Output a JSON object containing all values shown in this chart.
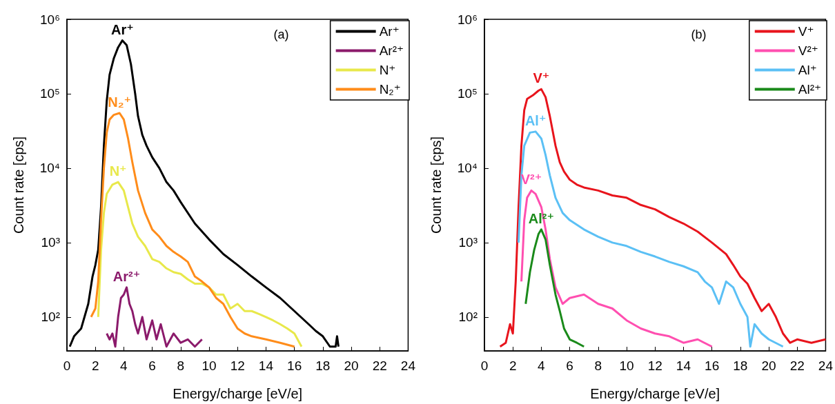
{
  "chart_data": [
    {
      "type": "line",
      "title": "(a)",
      "xlabel": "Energy/charge [eV/e]",
      "ylabel": "Count rate [cps]",
      "log": "y",
      "marker": "none",
      "line_style": "solid",
      "legend": "top right",
      "grid": false,
      "xlim": [
        0,
        24
      ],
      "xticks": [
        0,
        2,
        4,
        6,
        8,
        10,
        12,
        14,
        16,
        18,
        20,
        22,
        24
      ],
      "ylim": [
        35,
        1000000
      ],
      "yticks": [
        {
          "value": 100,
          "label": "10²"
        },
        {
          "value": 1000,
          "label": "10³"
        },
        {
          "value": 10000,
          "label": "10⁴"
        },
        {
          "value": 100000,
          "label": "10⁵"
        },
        {
          "value": 1000000,
          "label": "10⁶"
        }
      ],
      "series": [
        {
          "name": "Ar⁺",
          "color": "#000000",
          "x": [
            0.2,
            0.5,
            1.0,
            1.5,
            1.8,
            2.0,
            2.2,
            2.4,
            2.6,
            2.8,
            3.0,
            3.3,
            3.6,
            3.9,
            4.2,
            4.5,
            4.8,
            5.0,
            5.3,
            5.6,
            6.0,
            6.5,
            7.0,
            7.5,
            8.0,
            9.0,
            10.0,
            11.0,
            12.0,
            13.0,
            14.0,
            15.0,
            16.0,
            17.0,
            17.5,
            18.0,
            18.5,
            18.9,
            19.0,
            19.1
          ],
          "values": [
            40,
            55,
            70,
            150,
            350,
            500,
            800,
            3000,
            20000,
            80000,
            180000,
            300000,
            420000,
            520000,
            450000,
            250000,
            100000,
            50000,
            28000,
            20000,
            14000,
            10000,
            6500,
            5000,
            3500,
            1800,
            1100,
            700,
            500,
            350,
            250,
            180,
            120,
            80,
            65,
            55,
            40,
            40,
            55,
            40
          ]
        },
        {
          "name": "Ar²⁺",
          "color": "#8b1a6b",
          "x": [
            2.8,
            3.0,
            3.2,
            3.4,
            3.6,
            3.8,
            4.0,
            4.2,
            4.4,
            4.6,
            4.8,
            5.0,
            5.3,
            5.6,
            6.0,
            6.3,
            6.6,
            7.0,
            7.5,
            8.0,
            8.5,
            9.0,
            9.5
          ],
          "values": [
            60,
            50,
            60,
            40,
            100,
            180,
            200,
            250,
            150,
            120,
            80,
            60,
            100,
            50,
            90,
            50,
            80,
            40,
            60,
            45,
            50,
            40,
            50
          ]
        },
        {
          "name": "N⁺",
          "color": "#e8e84a",
          "x": [
            2.2,
            2.4,
            2.6,
            2.8,
            3.2,
            3.6,
            4.0,
            4.3,
            4.6,
            5.0,
            5.5,
            6.0,
            6.5,
            7.0,
            7.5,
            8.0,
            8.5,
            9.0,
            9.5,
            10.0,
            10.5,
            11.0,
            11.5,
            12.0,
            12.5,
            13.0,
            13.5,
            14.0,
            14.5,
            15.0,
            15.5,
            16.0,
            16.5
          ],
          "values": [
            100,
            800,
            2500,
            4500,
            6000,
            6500,
            5000,
            3000,
            1800,
            1200,
            900,
            600,
            550,
            450,
            400,
            380,
            320,
            280,
            280,
            250,
            200,
            200,
            130,
            150,
            120,
            120,
            110,
            100,
            90,
            80,
            70,
            60,
            40
          ]
        },
        {
          "name": "N₂⁺",
          "color": "#ff8c1a",
          "x": [
            1.7,
            2.0,
            2.2,
            2.4,
            2.6,
            2.8,
            3.0,
            3.3,
            3.7,
            4.0,
            4.3,
            4.6,
            5.0,
            5.5,
            6.0,
            6.5,
            7.0,
            7.5,
            8.0,
            8.5,
            9.0,
            9.5,
            10.0,
            10.5,
            11.0,
            11.5,
            12.0,
            12.5,
            13.0,
            14.0,
            15.0,
            16.0
          ],
          "values": [
            100,
            130,
            300,
            2000,
            10000,
            30000,
            45000,
            52000,
            55000,
            45000,
            25000,
            12000,
            5000,
            2500,
            1500,
            1200,
            900,
            750,
            650,
            550,
            350,
            300,
            250,
            180,
            150,
            100,
            70,
            60,
            55,
            50,
            45,
            40
          ]
        }
      ]
    },
    {
      "type": "line",
      "title": "(b)",
      "xlabel": "Energy/charge [eV/e]",
      "ylabel": "Count rate [cps]",
      "log": "y",
      "marker": "none",
      "line_style": "solid",
      "legend": "top right",
      "grid": false,
      "xlim": [
        0,
        24
      ],
      "xticks": [
        0,
        2,
        4,
        6,
        8,
        10,
        12,
        14,
        16,
        18,
        20,
        22,
        24
      ],
      "ylim": [
        35,
        1000000
      ],
      "yticks": [
        {
          "value": 100,
          "label": "10²"
        },
        {
          "value": 1000,
          "label": "10³"
        },
        {
          "value": 10000,
          "label": "10⁴"
        },
        {
          "value": 100000,
          "label": "10⁵"
        },
        {
          "value": 1000000,
          "label": "10⁶"
        }
      ],
      "series": [
        {
          "name": "V⁺",
          "color": "#e8141c",
          "x": [
            1.1,
            1.5,
            1.8,
            2.0,
            2.2,
            2.4,
            2.6,
            2.8,
            3.0,
            3.4,
            3.8,
            4.0,
            4.3,
            4.6,
            5.0,
            5.3,
            5.6,
            6.0,
            6.5,
            7.0,
            8.0,
            9.0,
            10.0,
            11.0,
            12.0,
            13.0,
            14.0,
            15.0,
            16.0,
            17.0,
            17.5,
            18.0,
            18.5,
            19.0,
            19.5,
            20.0,
            20.5,
            21.0,
            21.5,
            22.0,
            23.0,
            24.0
          ],
          "values": [
            40,
            45,
            80,
            60,
            300,
            3000,
            20000,
            60000,
            85000,
            95000,
            110000,
            115000,
            90000,
            50000,
            20000,
            12000,
            9000,
            7000,
            6000,
            5500,
            5000,
            4300,
            4000,
            3200,
            2800,
            2200,
            1800,
            1400,
            1000,
            700,
            500,
            350,
            280,
            180,
            120,
            150,
            100,
            60,
            45,
            50,
            45,
            50
          ]
        },
        {
          "name": "V²⁺",
          "color": "#ff4fb0",
          "x": [
            2.6,
            2.8,
            3.0,
            3.3,
            3.6,
            4.0,
            4.3,
            4.6,
            5.0,
            5.5,
            6.0,
            7.0,
            8.0,
            9.0,
            10.0,
            11.0,
            12.0,
            13.0,
            14.0,
            15.0,
            16.0
          ],
          "values": [
            300,
            2000,
            4000,
            5000,
            4500,
            3000,
            1500,
            600,
            250,
            150,
            180,
            200,
            150,
            130,
            90,
            70,
            60,
            55,
            45,
            50,
            40
          ]
        },
        {
          "name": "Al⁺",
          "color": "#5bc0f5",
          "x": [
            2.4,
            2.6,
            2.8,
            3.2,
            3.6,
            4.0,
            4.3,
            4.6,
            5.0,
            5.5,
            6.0,
            7.0,
            8.0,
            9.0,
            10.0,
            11.0,
            12.0,
            13.0,
            14.0,
            15.0,
            15.5,
            16.0,
            16.5,
            17.0,
            17.5,
            18.0,
            18.5,
            18.7,
            19.0,
            19.5,
            20.0,
            21.0
          ],
          "values": [
            1000,
            8000,
            20000,
            30000,
            31000,
            25000,
            15000,
            8000,
            4000,
            2500,
            2000,
            1500,
            1200,
            1000,
            900,
            750,
            650,
            550,
            480,
            400,
            300,
            250,
            150,
            300,
            250,
            150,
            100,
            40,
            80,
            60,
            50,
            40
          ]
        },
        {
          "name": "Al²⁺",
          "color": "#1a8a1a",
          "x": [
            2.9,
            3.2,
            3.5,
            3.8,
            4.0,
            4.3,
            4.6,
            5.0,
            5.3,
            5.6,
            6.0,
            6.5,
            7.0
          ],
          "values": [
            150,
            400,
            800,
            1300,
            1500,
            1100,
            500,
            200,
            120,
            70,
            50,
            45,
            40
          ]
        }
      ]
    }
  ]
}
